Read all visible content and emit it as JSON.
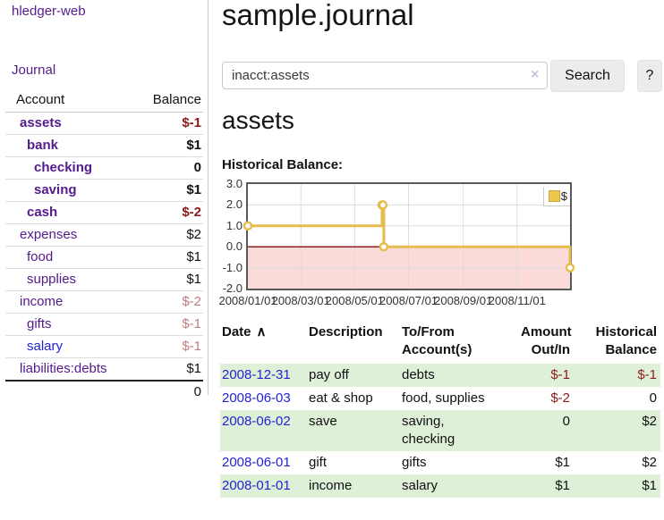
{
  "app": {
    "title": "hledger-web"
  },
  "sidebar": {
    "nav_journal": "Journal",
    "account_header": "Account",
    "balance_header": "Balance",
    "accounts": [
      {
        "name": "assets",
        "balance": "$-1"
      },
      {
        "name": "bank",
        "balance": "$1"
      },
      {
        "name": "checking",
        "balance": "0"
      },
      {
        "name": "saving",
        "balance": "$1"
      },
      {
        "name": "cash",
        "balance": "$-2"
      },
      {
        "name": "expenses",
        "balance": "$2"
      },
      {
        "name": "food",
        "balance": "$1"
      },
      {
        "name": "supplies",
        "balance": "$1"
      },
      {
        "name": "income",
        "balance": "$-2"
      },
      {
        "name": "gifts",
        "balance": "$-1"
      },
      {
        "name": "salary",
        "balance": "$-1"
      },
      {
        "name": "liabilities:debts",
        "balance": "$1"
      }
    ],
    "total": "0"
  },
  "header": {
    "title": "sample.journal"
  },
  "search": {
    "query": "inacct:assets",
    "clear_icon": "×",
    "button_label": "Search",
    "help_label": "?"
  },
  "account_page": {
    "heading": "assets",
    "chart_label": "Historical Balance:"
  },
  "chart_data": {
    "type": "line",
    "step": true,
    "title": "Historical Balance:",
    "series": [
      {
        "name": "$",
        "points": [
          [
            "2008-01-01",
            1
          ],
          [
            "2008-06-01",
            2
          ],
          [
            "2008-06-02",
            2
          ],
          [
            "2008-06-03",
            0
          ],
          [
            "2008-12-31",
            -1
          ]
        ]
      }
    ],
    "x_range": [
      "2008-01-01",
      "2008-12-31"
    ],
    "x_ticks": [
      "2008/01/01",
      "2008/03/01",
      "2008/05/01",
      "2008/07/01",
      "2008/09/01",
      "2008/11/01"
    ],
    "y_ticks": [
      3,
      2,
      1,
      0,
      -1,
      -2
    ],
    "ylim": [
      -2,
      3
    ],
    "legend_position": "top-right",
    "grid": true,
    "colors": {
      "line": "#e5bd4f",
      "negative_fill": "#fbdada",
      "zero_line": "#8f1f1f",
      "grid": "#dcdcdc"
    }
  },
  "register": {
    "sort_caret": "∧",
    "columns": [
      {
        "label": "Date"
      },
      {
        "label": "Description"
      },
      {
        "label": "To/From\nAccount(s)"
      },
      {
        "label": "Amount\nOut/In"
      },
      {
        "label": "Historical\nBalance"
      }
    ],
    "rows": [
      {
        "date": "2008-12-31",
        "description": "pay off",
        "accounts": "debts",
        "amount": "$-1",
        "balance": "$-1"
      },
      {
        "date": "2008-06-03",
        "description": "eat & shop",
        "accounts": "food, supplies",
        "amount": "$-2",
        "balance": "0"
      },
      {
        "date": "2008-06-02",
        "description": "save",
        "accounts": "saving,\nchecking",
        "amount": "0",
        "balance": "$2"
      },
      {
        "date": "2008-06-01",
        "description": "gift",
        "accounts": "gifts",
        "amount": "$1",
        "balance": "$2"
      },
      {
        "date": "2008-01-01",
        "description": "income",
        "accounts": "salary",
        "amount": "$1",
        "balance": "$1"
      }
    ]
  }
}
